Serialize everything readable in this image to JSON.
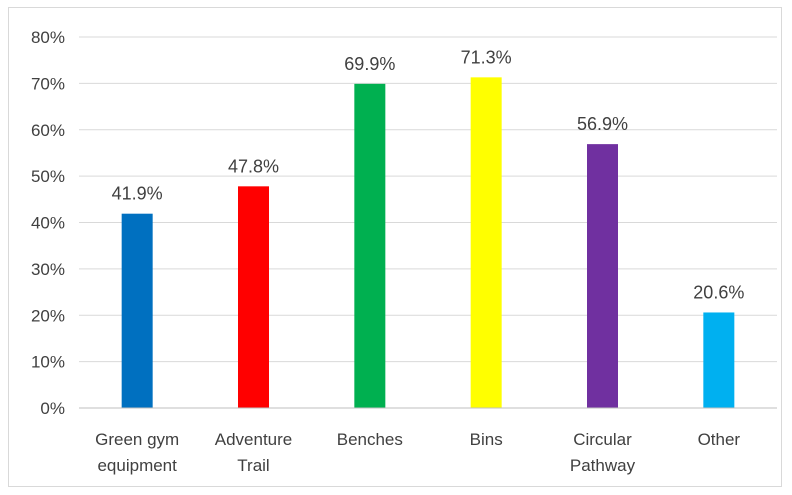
{
  "chart_data": {
    "type": "bar",
    "categories": [
      [
        "Green gym",
        "equipment"
      ],
      [
        "Adventure",
        "Trail"
      ],
      [
        "Benches"
      ],
      [
        "Bins"
      ],
      [
        "Circular",
        "Pathway"
      ],
      [
        "Other"
      ]
    ],
    "values": [
      41.9,
      47.8,
      69.9,
      71.3,
      56.9,
      20.6
    ],
    "data_labels": [
      "41.9%",
      "47.8%",
      "69.9%",
      "71.3%",
      "56.9%",
      "20.6%"
    ],
    "bar_colors": [
      "#0070c0",
      "#ff0000",
      "#00b050",
      "#ffff00",
      "#7030a0",
      "#00b0f0"
    ],
    "ylim": [
      0,
      80
    ],
    "y_ticks": [
      0,
      10,
      20,
      30,
      40,
      50,
      60,
      70,
      80
    ],
    "y_tick_labels": [
      "0%",
      "10%",
      "20%",
      "30%",
      "40%",
      "50%",
      "60%",
      "70%",
      "80%"
    ],
    "title": "",
    "xlabel": "",
    "ylabel": "",
    "grid": true,
    "legend": "none"
  }
}
